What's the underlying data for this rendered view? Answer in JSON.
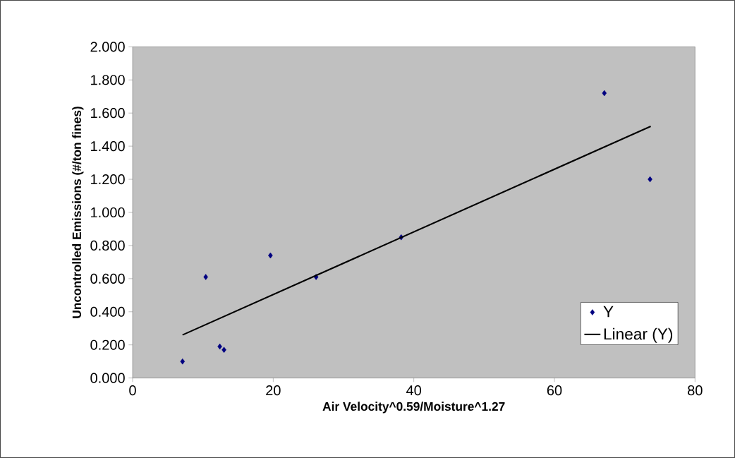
{
  "chart_data": {
    "type": "scatter",
    "xlabel": "Air Velocity^0.59/Moisture^1.27",
    "ylabel": "Uncontrolled Emissions (#/ton fines)",
    "xlim": [
      0,
      80
    ],
    "xticks": [
      0,
      20,
      40,
      60,
      80
    ],
    "ylim": [
      0,
      2
    ],
    "yticks": [
      {
        "value": 0,
        "label": "0.000"
      },
      {
        "value": 0.2,
        "label": "0.200"
      },
      {
        "value": 0.4,
        "label": "0.400"
      },
      {
        "value": 0.6,
        "label": "0.600"
      },
      {
        "value": 0.8,
        "label": "0.800"
      },
      {
        "value": 1.0,
        "label": "1.000"
      },
      {
        "value": 1.2,
        "label": "1.200"
      },
      {
        "value": 1.4,
        "label": "1.400"
      },
      {
        "value": 1.6,
        "label": "1.600"
      },
      {
        "value": 1.8,
        "label": "1.800"
      },
      {
        "value": 2.0,
        "label": "2.000"
      }
    ],
    "grid": false,
    "legend": "bottom right",
    "series": [
      {
        "name": "Y",
        "marker": "diamond",
        "color": "#000080",
        "x": [
          7.1,
          10.4,
          12.4,
          13.0,
          19.6,
          26.1,
          38.2,
          67.1,
          73.6
        ],
        "values": [
          0.1,
          0.61,
          0.19,
          0.17,
          0.74,
          0.61,
          0.85,
          1.72,
          1.2
        ]
      },
      {
        "name": "Linear (Y)",
        "type": "line",
        "marker": "none",
        "line_style": "solid",
        "color": "#000000",
        "x": [
          7.1,
          73.7
        ],
        "values": [
          0.26,
          1.52
        ]
      }
    ]
  }
}
